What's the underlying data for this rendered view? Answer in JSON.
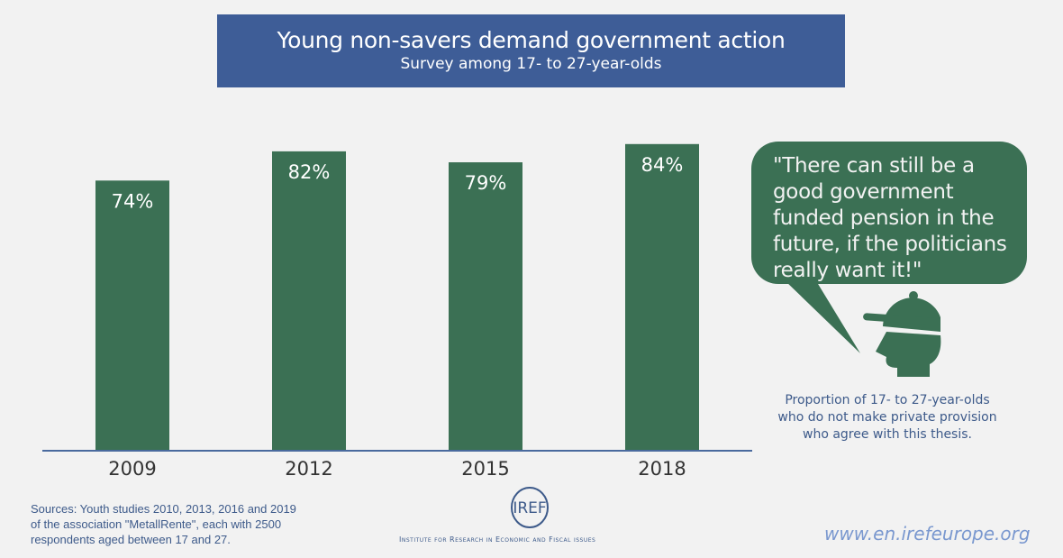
{
  "chart_data": {
    "type": "bar",
    "title": "Young non-savers demand government action",
    "subtitle": "Survey among 17- to 27-year-olds",
    "categories": [
      "2009",
      "2012",
      "2015",
      "2018"
    ],
    "values": [
      74,
      82,
      79,
      84
    ],
    "labels": [
      "74%",
      "82%",
      "79%",
      "84%"
    ],
    "ylim": [
      0,
      100
    ],
    "xlabel": "",
    "ylabel": "",
    "grid": false,
    "bar_color": "#3b7054",
    "axis_color": "#4a6a9e"
  },
  "quote": {
    "lines": [
      "\"There can still be a",
      "good government",
      "funded pension in the",
      "future, if the politicians",
      "really want it!\""
    ]
  },
  "caption": {
    "lines": [
      "Proportion of 17- to 27-year-olds",
      "who do not make private provision",
      "who agree with this thesis."
    ]
  },
  "sources": {
    "lines": [
      "Sources: Youth studies 2010, 2013, 2016 and 2019",
      "of the association \"MetallRente\", each with 2500",
      "respondents aged between 17 and 27."
    ]
  },
  "logo": {
    "text": "IREF",
    "institute": "Institute for Research in Economic and Fiscal issues"
  },
  "url": "www.en.irefeurope.org"
}
